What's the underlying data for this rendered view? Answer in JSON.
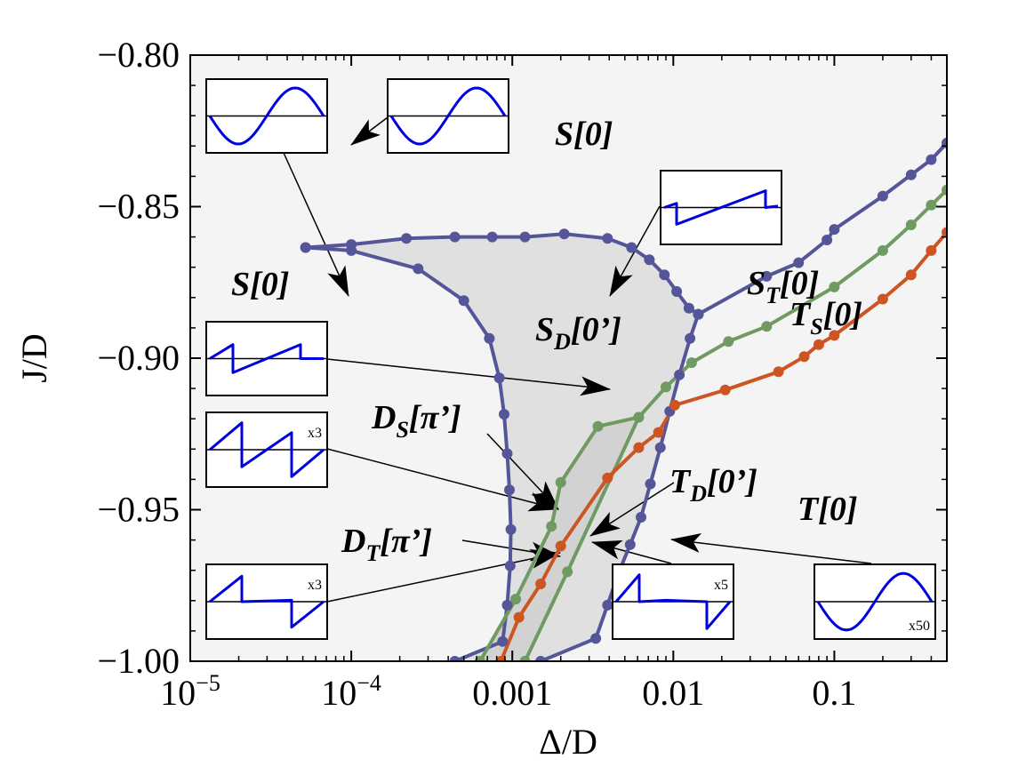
{
  "chart_data": {
    "type": "scatter",
    "title": "",
    "xlabel": "Δ/D",
    "ylabel": "J/D",
    "xscale": "log",
    "xlim": [
      1e-05,
      0.5
    ],
    "ylim": [
      -1.0,
      -0.8
    ],
    "xticks": [
      {
        "value": 1e-05,
        "label": "10",
        "exp": "−5"
      },
      {
        "value": 0.0001,
        "label": "10",
        "exp": "−4"
      },
      {
        "value": 0.001,
        "label": "0.001",
        "exp": ""
      },
      {
        "value": 0.01,
        "label": "0.01",
        "exp": ""
      },
      {
        "value": 0.1,
        "label": "0.1",
        "exp": ""
      }
    ],
    "yticks": [
      {
        "value": -0.8,
        "label": "−0.80"
      },
      {
        "value": -0.85,
        "label": "−0.85"
      },
      {
        "value": -0.9,
        "label": "−0.90"
      },
      {
        "value": -0.95,
        "label": "−0.95"
      },
      {
        "value": -1.0,
        "label": "−1.00"
      }
    ],
    "colors": {
      "blue": "#55559a",
      "green": "#6f9a62",
      "orange": "#cc5522",
      "background": "#f4f4f4",
      "region": "#e0e0e0",
      "region_dark": "#d2d2d2",
      "wave": "#0000dd"
    },
    "series": [
      {
        "name": "blue-upper-boundary",
        "color": "#55559a",
        "points": [
          [
            5.2e-05,
            -0.8635
          ],
          [
            0.0001,
            -0.8625
          ],
          [
            0.00022,
            -0.8605
          ],
          [
            0.00044,
            -0.86
          ],
          [
            0.00075,
            -0.86
          ],
          [
            0.0012,
            -0.86
          ],
          [
            0.0021,
            -0.859
          ],
          [
            0.0039,
            -0.8605
          ],
          [
            0.0055,
            -0.8635
          ],
          [
            0.0071,
            -0.8675
          ],
          [
            0.0088,
            -0.8725
          ],
          [
            0.0105,
            -0.878
          ],
          [
            0.0125,
            -0.8835
          ],
          [
            0.0143,
            -0.8855
          ]
        ]
      },
      {
        "name": "blue-right-branch",
        "color": "#55559a",
        "points": [
          [
            0.0143,
            -0.8855
          ],
          [
            0.038,
            -0.873
          ],
          [
            0.06,
            -0.8685
          ],
          [
            0.09,
            -0.861
          ],
          [
            0.1,
            -0.8575
          ],
          [
            0.2,
            -0.8465
          ],
          [
            0.3,
            -0.8395
          ],
          [
            0.4,
            -0.8345
          ],
          [
            0.5,
            -0.829
          ]
        ]
      },
      {
        "name": "blue-left-boundary",
        "color": "#55559a",
        "points": [
          [
            5.2e-05,
            -0.8635
          ],
          [
            0.0001,
            -0.8645
          ],
          [
            0.00026,
            -0.8705
          ],
          [
            0.0005,
            -0.881
          ],
          [
            0.00072,
            -0.8935
          ],
          [
            0.00083,
            -0.9065
          ],
          [
            0.00089,
            -0.9185
          ],
          [
            0.00093,
            -0.9315
          ],
          [
            0.00096,
            -0.9435
          ],
          [
            0.00098,
            -0.9565
          ],
          [
            0.00097,
            -0.9685
          ],
          [
            0.00093,
            -0.9815
          ],
          [
            0.00087,
            -0.9935
          ],
          [
            0.00044,
            -1.0
          ]
        ]
      },
      {
        "name": "blue-right-boundary",
        "color": "#55559a",
        "points": [
          [
            0.0143,
            -0.8855
          ],
          [
            0.0127,
            -0.8935
          ],
          [
            0.0109,
            -0.9055
          ],
          [
            0.0095,
            -0.9175
          ],
          [
            0.0083,
            -0.9295
          ],
          [
            0.0072,
            -0.9415
          ],
          [
            0.0063,
            -0.9525
          ],
          [
            0.0054,
            -0.9615
          ],
          [
            0.0046,
            -0.9705
          ],
          [
            0.0039,
            -0.9815
          ],
          [
            0.0033,
            -0.9925
          ],
          [
            0.0015,
            -1.0
          ]
        ]
      },
      {
        "name": "green",
        "color": "#6f9a62",
        "points": [
          [
            0.00063,
            -1.0
          ],
          [
            0.00105,
            -0.9795
          ],
          [
            0.00175,
            -0.9555
          ],
          [
            0.002,
            -0.941
          ],
          [
            0.0034,
            -0.9225
          ],
          [
            0.0061,
            -0.9195
          ],
          [
            0.009,
            -0.9095
          ],
          [
            0.013,
            -0.9015
          ],
          [
            0.022,
            -0.8945
          ],
          [
            0.038,
            -0.8895
          ],
          [
            0.1,
            -0.8765
          ],
          [
            0.2,
            -0.8645
          ],
          [
            0.3,
            -0.856
          ],
          [
            0.4,
            -0.8495
          ],
          [
            0.5,
            -0.8445
          ]
        ]
      },
      {
        "name": "green-lower",
        "color": "#6f9a62",
        "points": [
          [
            0.0012,
            -1.0
          ],
          [
            0.0022,
            -0.9705
          ],
          [
            0.0061,
            -0.9195
          ]
        ]
      },
      {
        "name": "orange",
        "color": "#cc5522",
        "points": [
          [
            0.00085,
            -1.0
          ],
          [
            0.0011,
            -0.9855
          ],
          [
            0.0015,
            -0.9745
          ],
          [
            0.002,
            -0.962
          ],
          [
            0.0039,
            -0.9395
          ],
          [
            0.0061,
            -0.9295
          ],
          [
            0.0081,
            -0.9245
          ],
          [
            0.0102,
            -0.9155
          ],
          [
            0.021,
            -0.9105
          ],
          [
            0.045,
            -0.9045
          ],
          [
            0.065,
            -0.8995
          ],
          [
            0.08,
            -0.8955
          ],
          [
            0.1,
            -0.8925
          ],
          [
            0.2,
            -0.8805
          ],
          [
            0.3,
            -0.8725
          ],
          [
            0.4,
            -0.8645
          ],
          [
            0.5,
            -0.8585
          ]
        ]
      }
    ],
    "annotations": [
      {
        "name": "label-s0-top",
        "parts": [
          {
            "t": "S"
          },
          {
            "t": "[0]"
          }
        ]
      },
      {
        "name": "label-s0-left",
        "parts": [
          {
            "t": "S"
          },
          {
            "t": "[0]"
          }
        ]
      },
      {
        "name": "label-sd",
        "parts": [
          {
            "t": "S"
          },
          {
            "t": "D",
            "sub": true
          },
          {
            "t": "[0’]"
          }
        ]
      },
      {
        "name": "label-st",
        "parts": [
          {
            "t": "S"
          },
          {
            "t": "T",
            "sub": true
          },
          {
            "t": "[0]"
          }
        ]
      },
      {
        "name": "label-ts",
        "parts": [
          {
            "t": "T"
          },
          {
            "t": "S",
            "sub": true
          },
          {
            "t": "[0]"
          }
        ]
      },
      {
        "name": "label-ds",
        "parts": [
          {
            "t": "D"
          },
          {
            "t": "S",
            "sub": true
          },
          {
            "t": "[π’]"
          }
        ]
      },
      {
        "name": "label-dt",
        "parts": [
          {
            "t": "D"
          },
          {
            "t": "T",
            "sub": true
          },
          {
            "t": "[π’]"
          }
        ]
      },
      {
        "name": "label-td",
        "parts": [
          {
            "t": "T"
          },
          {
            "t": "D",
            "sub": true
          },
          {
            "t": "[0’]"
          }
        ]
      },
      {
        "name": "label-t0",
        "parts": [
          {
            "t": "T"
          },
          {
            "t": "[0]"
          }
        ]
      }
    ],
    "insets": [
      {
        "name": "inset-s0-a",
        "waveform": "sine-start-down",
        "multiplier": ""
      },
      {
        "name": "inset-s0-b",
        "waveform": "sine-start-down",
        "multiplier": ""
      },
      {
        "name": "inset-sd",
        "waveform": "sawtooth-single",
        "multiplier": ""
      },
      {
        "name": "inset-sd-left",
        "waveform": "sawtooth-double",
        "multiplier": ""
      },
      {
        "name": "inset-ds",
        "waveform": "sawtooth-large",
        "multiplier": "x3"
      },
      {
        "name": "inset-dt",
        "waveform": "step-jump",
        "multiplier": "x3"
      },
      {
        "name": "inset-td",
        "waveform": "step-jump-small",
        "multiplier": "x5"
      },
      {
        "name": "inset-t0",
        "waveform": "sine",
        "multiplier": "x50"
      }
    ]
  }
}
